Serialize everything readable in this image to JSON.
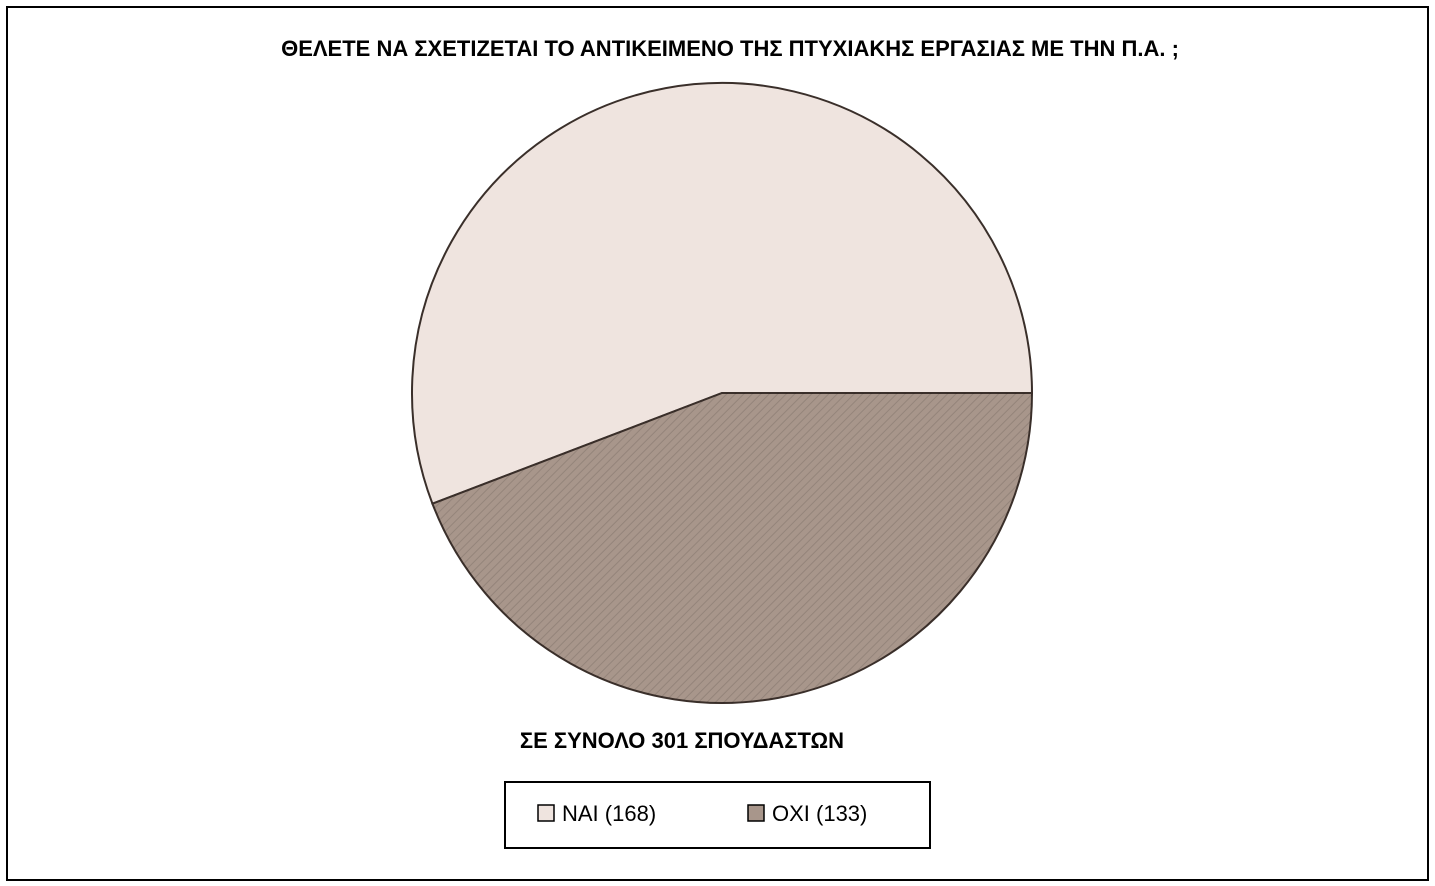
{
  "chart_data": {
    "type": "pie",
    "title": "ΘΕΛΕΤΕ ΝΑ ΣΧΕΤΙΖΕΤΑΙ ΤΟ ΑΝΤΙΚΕΙΜΕΝΟ ΤΗΣ ΠΤΥΧΙΑΚΗΣ ΕΡΓΑΣΙΑΣ ΜΕ ΤΗΝ Π.Α. ;",
    "subtitle": "ΣΕ ΣΥΝΟΛΟ 301 ΣΠΟΥΔΑΣΤΩΝ",
    "categories": [
      "ΝΑΙ (168)",
      "ΟΧΙ (133)"
    ],
    "values": [
      168,
      133
    ],
    "colors": [
      "#efe4df",
      "#a8968b"
    ],
    "legend": "bottom"
  }
}
